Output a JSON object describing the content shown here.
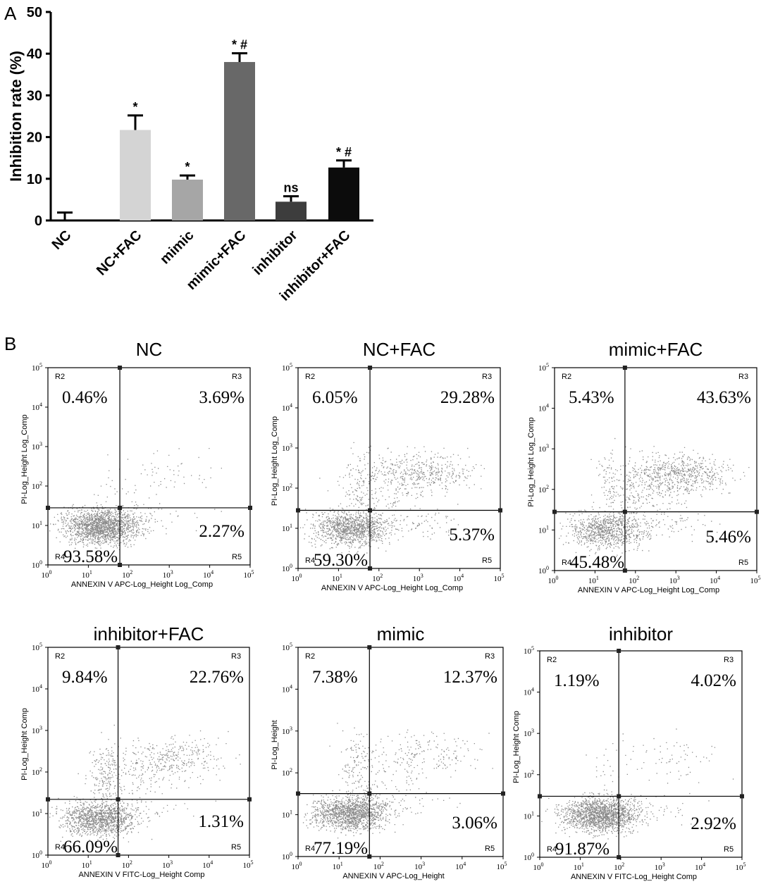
{
  "panel_labels": [
    "A",
    "B"
  ],
  "chart_data": [
    {
      "type": "bar",
      "ylabel": "Inhibition rate (%)",
      "ylim": [
        0,
        50
      ],
      "yticks": [
        "0",
        "10",
        "20",
        "30",
        "40",
        "50"
      ],
      "categories": [
        "NC",
        "NC+FAC",
        "mimic",
        "mimic+FAC",
        "inhibitor",
        "inhibitor+FAC"
      ],
      "values": [
        0,
        21.7,
        9.8,
        38.0,
        4.5,
        12.7
      ],
      "errors": [
        1.9,
        3.5,
        1.0,
        2.1,
        1.3,
        1.7
      ],
      "colors": [
        "#ffffff",
        "#d4d4d4",
        "#a6a6a6",
        "#686868",
        "#3d3d3d",
        "#0c0c0c"
      ],
      "annotations": [
        "",
        "*",
        "*",
        "* #",
        "ns",
        "* #"
      ]
    },
    {
      "type": "scatter",
      "title": "NC",
      "xlabel": "ANNEXIN V APC-Log_Height Log_Comp",
      "ylabel": "PI-Log_Height Log_Comp",
      "quadrants": {
        "ul": "0.46%",
        "ur": "3.69%",
        "ll": "93.58%",
        "lr": "2.27%"
      },
      "regions": [
        "R2",
        "R3",
        "R4",
        "R5"
      ],
      "gate": [
        60,
        28
      ],
      "xlim": [
        1,
        100000
      ],
      "ylim": [
        1,
        100000
      ]
    },
    {
      "type": "scatter",
      "title": "NC+FAC",
      "xlabel": "ANNEXIN V APC-Log_Height Log_Comp",
      "ylabel": "PI-Log_Height Log_Comp",
      "quadrants": {
        "ul": "6.05%",
        "ur": "29.28%",
        "ll": "59.30%",
        "lr": "5.37%"
      },
      "regions": [
        "R2",
        "R3",
        "R4",
        "R5"
      ],
      "gate": [
        60,
        28
      ],
      "xlim": [
        1,
        100000
      ],
      "ylim": [
        1,
        100000
      ]
    },
    {
      "type": "scatter",
      "title": "mimic+FAC",
      "xlabel": "ANNEXIN V APC-Log_Height Log_Comp",
      "ylabel": "PI-Log_Height Log_Comp",
      "quadrants": {
        "ul": "5.43%",
        "ur": "43.63%",
        "ll": "45.48%",
        "lr": "5.46%"
      },
      "regions": [
        "R2",
        "R3",
        "R4",
        "R5"
      ],
      "gate": [
        55,
        28
      ],
      "xlim": [
        1,
        100000
      ],
      "ylim": [
        1,
        100000
      ]
    },
    {
      "type": "scatter",
      "title": "inhibitor+FAC",
      "xlabel": "ANNEXIN V FITC-Log_Height Comp",
      "ylabel": "PI-Log_Height Comp",
      "quadrants": {
        "ul": "9.84%",
        "ur": "22.76%",
        "ll": "66.09%",
        "lr": "1.31%"
      },
      "regions": [
        "R2",
        "R3",
        "R4",
        "R5"
      ],
      "gate": [
        55,
        22
      ],
      "xlim": [
        1,
        100000
      ],
      "ylim": [
        1,
        100000
      ]
    },
    {
      "type": "scatter",
      "title": "mimic",
      "xlabel": "ANNEXIN V APC-Log_Height",
      "ylabel": "PI-Log_Height",
      "quadrants": {
        "ul": "7.38%",
        "ur": "12.37%",
        "ll": "77.19%",
        "lr": "3.06%"
      },
      "regions": [
        "R2",
        "R3",
        "R4",
        "R5"
      ],
      "gate": [
        55,
        32
      ],
      "xlim": [
        1,
        100000
      ],
      "ylim": [
        1,
        100000
      ]
    },
    {
      "type": "scatter",
      "title": "inhibitor",
      "xlabel": "ANNEXIN V FITC-Log_Height Comp",
      "ylabel": "PI-Log_Height Comp",
      "quadrants": {
        "ul": "1.19%",
        "ur": "4.02%",
        "ll": "91.87%",
        "lr": "2.92%"
      },
      "regions": [
        "R2",
        "R3",
        "R4",
        "R5"
      ],
      "gate": [
        90,
        30
      ],
      "xlim": [
        1,
        100000
      ],
      "ylim": [
        1,
        100000
      ]
    }
  ]
}
